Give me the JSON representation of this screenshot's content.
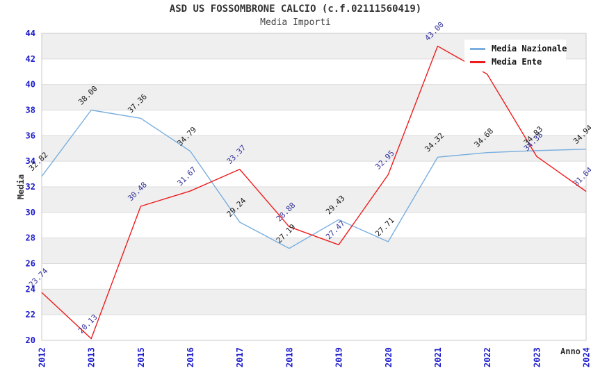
{
  "header": {
    "title": "ASD US FOSSOMBRONE CALCIO (c.f.02111560419)",
    "subtitle": "Media Importi"
  },
  "axes": {
    "y_title": "Media",
    "x_title": "Anno",
    "y_ticks": [
      44,
      42,
      40,
      38,
      36,
      34,
      32,
      30,
      28,
      26,
      24,
      22,
      20
    ],
    "tick_color": "#1b1bcc",
    "band_color": "#efefef",
    "grid_color": "#dbdbdb",
    "border_color": "#c9c9c9"
  },
  "chart_data": {
    "type": "line",
    "title": "ASD US FOSSOMBRONE CALCIO (c.f.02111560419)",
    "subtitle": "Media Importi",
    "xlabel": "Anno",
    "ylabel": "Media",
    "ylim": [
      20,
      44
    ],
    "y_tick_step": 2,
    "grid": "horizontal alternating bands",
    "legend_position": "top-right",
    "point_labels": "each point labeled with value, rotated 45deg",
    "categories": [
      "2012",
      "2013",
      "2015",
      "2016",
      "2017",
      "2018",
      "2019",
      "2020",
      "2021",
      "2022",
      "2023",
      "2024"
    ],
    "series": [
      {
        "name": "Media Nazionale",
        "color": "#79aedf",
        "label_color": "#1a1a1a",
        "values": [
          32.82,
          38.0,
          37.36,
          34.79,
          29.24,
          27.19,
          29.43,
          27.71,
          34.32,
          34.68,
          34.83,
          34.94
        ]
      },
      {
        "name": "Media Ente",
        "color": "#ee1c1c",
        "label_color": "#33339c",
        "values": [
          23.74,
          20.13,
          30.48,
          31.67,
          33.37,
          28.88,
          27.47,
          32.95,
          43.0,
          40.81,
          34.38,
          31.64
        ]
      }
    ]
  }
}
